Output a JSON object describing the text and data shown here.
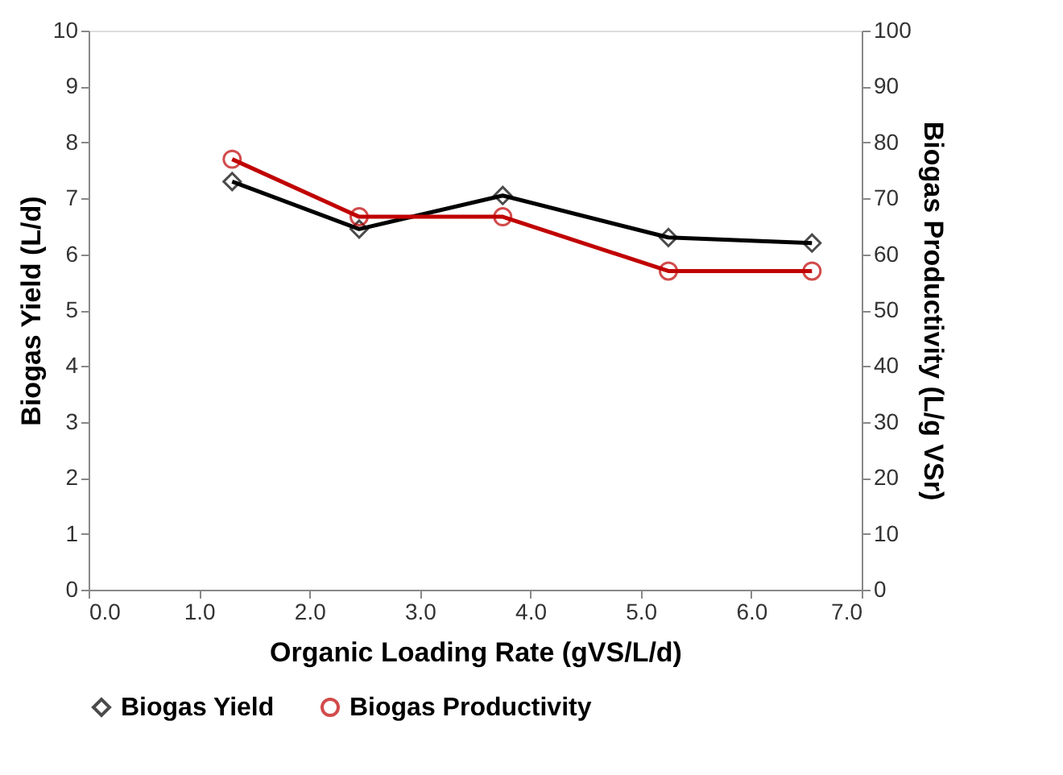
{
  "chart_data": {
    "type": "line",
    "xlabel": "Organic Loading Rate (gVS/L/d)",
    "ylabel": "Biogas Yield (L/d)",
    "y2label": "Biogas Productivity (L/g VSr)",
    "xlim": [
      0,
      7
    ],
    "xticks": [
      {
        "value": 0,
        "label": "0.0"
      },
      {
        "value": 1,
        "label": "1.0"
      },
      {
        "value": 2,
        "label": "2.0"
      },
      {
        "value": 3,
        "label": "3.0"
      },
      {
        "value": 4,
        "label": "4.0"
      },
      {
        "value": 5,
        "label": "5.0"
      },
      {
        "value": 6,
        "label": "6.0"
      },
      {
        "value": 7,
        "label": "7.0"
      }
    ],
    "ylim": [
      0,
      10
    ],
    "yticks": [
      0,
      1,
      2,
      3,
      4,
      5,
      6,
      7,
      8,
      9,
      10
    ],
    "y2lim": [
      0,
      100
    ],
    "y2ticks": [
      0,
      10,
      20,
      30,
      40,
      50,
      60,
      70,
      80,
      90,
      100
    ],
    "grid": false,
    "legend": "bottom",
    "line_style": "solid",
    "series": [
      {
        "name": "Biogas Yield",
        "color": "#000000",
        "marker": "diamond",
        "x": [
          1.3,
          2.45,
          3.75,
          5.25,
          6.55
        ],
        "values": [
          7.3,
          6.45,
          7.05,
          6.3,
          6.2
        ]
      },
      {
        "name": "Biogas Productivity",
        "color": "#c00000",
        "marker": "circle",
        "axis": "y2",
        "x": [
          1.3,
          2.45,
          3.75,
          5.25,
          6.55
        ],
        "values": [
          77,
          66.7,
          66.7,
          57,
          57
        ]
      }
    ]
  }
}
